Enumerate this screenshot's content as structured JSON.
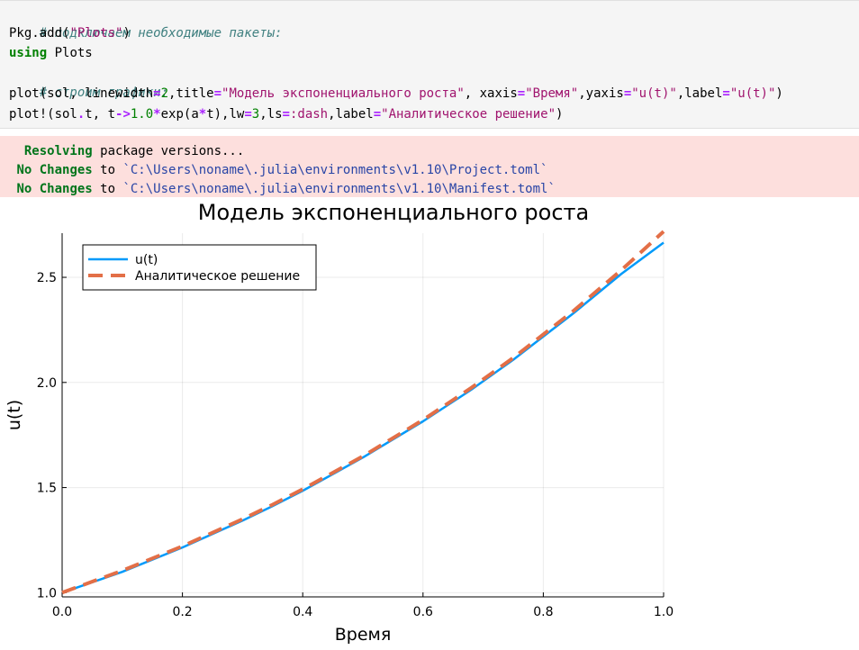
{
  "code_cell": {
    "line1": "# подключаем необходимые пакеты:",
    "line2": {
      "a": "Pkg.add(",
      "s": "\"Plots\"",
      "b": ")"
    },
    "line3": {
      "kw": "using",
      "rest": " Plots"
    },
    "line4": "# строим графики:",
    "line5": {
      "p1": "plot(sol, linewidth",
      "eq1": "=",
      "n1": "2",
      "p2": ",title",
      "eq2": "=",
      "s1": "\"Модель экспоненциального роста\"",
      "p3": ", xaxis",
      "eq3": "=",
      "s2": "\"Время\"",
      "p4": ",yaxis",
      "eq4": "=",
      "s3": "\"u(t)\"",
      "p5": ",label",
      "eq5": "=",
      "s4": "\"u(t)\"",
      "p6": ")"
    },
    "line6": {
      "p1": "plot!(sol",
      "dot": ".",
      "p2": "t, t",
      "arrow": "->",
      "n1": "1.0",
      "star1": "*",
      "p3": "exp(a",
      "star2": "*",
      "p4": "t),lw",
      "eq1": "=",
      "n2": "3",
      "p5": ",ls",
      "eq2": "=",
      "sym": ":dash",
      "p6": ",label",
      "eq3": "=",
      "s1": "\"Аналитическое решение\"",
      "p7": ")"
    }
  },
  "output_cell": {
    "line1": {
      "strong": "Resolving",
      "rest": " package versions..."
    },
    "line2": {
      "strong": "No Changes",
      "mid": " to ",
      "path": "`C:\\Users\\noname\\.julia\\environments\\v1.10\\Project.toml`"
    },
    "line3": {
      "strong": "No Changes",
      "mid": " to ",
      "path": "`C:\\Users\\noname\\.julia\\environments\\v1.10\\Manifest.toml`"
    }
  },
  "chart_data": {
    "type": "line",
    "title": "Модель экспоненциального роста",
    "xlabel": "Время",
    "ylabel": "u(t)",
    "xlim": [
      0,
      1
    ],
    "ylim": [
      0.98,
      2.71
    ],
    "xticks": [
      0.0,
      0.2,
      0.4,
      0.6,
      0.8,
      1.0
    ],
    "xtick_labels": [
      "0.0",
      "0.2",
      "0.4",
      "0.6",
      "0.8",
      "1.0"
    ],
    "yticks": [
      1.0,
      1.5,
      2.0,
      2.5
    ],
    "ytick_labels": [
      "1.0",
      "1.5",
      "2.0",
      "2.5"
    ],
    "grid": true,
    "legend": "top-left",
    "series": [
      {
        "name": "u(t)",
        "color": "#009afa",
        "style": "solid",
        "x": [
          0.0,
          0.1,
          0.2,
          0.3,
          0.35,
          0.4,
          0.5,
          0.6,
          0.68,
          0.75,
          0.85,
          0.93,
          1.0
        ],
        "y": [
          1.0,
          1.099,
          1.215,
          1.343,
          1.412,
          1.485,
          1.643,
          1.815,
          1.965,
          2.108,
          2.329,
          2.517,
          2.665
        ]
      },
      {
        "name": "Аналитическое решение",
        "color": "#e36f47",
        "style": "dashed",
        "x": [
          0.0,
          0.1,
          0.2,
          0.3,
          0.35,
          0.4,
          0.5,
          0.6,
          0.68,
          0.75,
          0.85,
          0.93,
          1.0
        ],
        "y": [
          1.0,
          1.105,
          1.221,
          1.35,
          1.419,
          1.492,
          1.649,
          1.822,
          1.974,
          2.117,
          2.34,
          2.535,
          2.718
        ]
      }
    ]
  }
}
